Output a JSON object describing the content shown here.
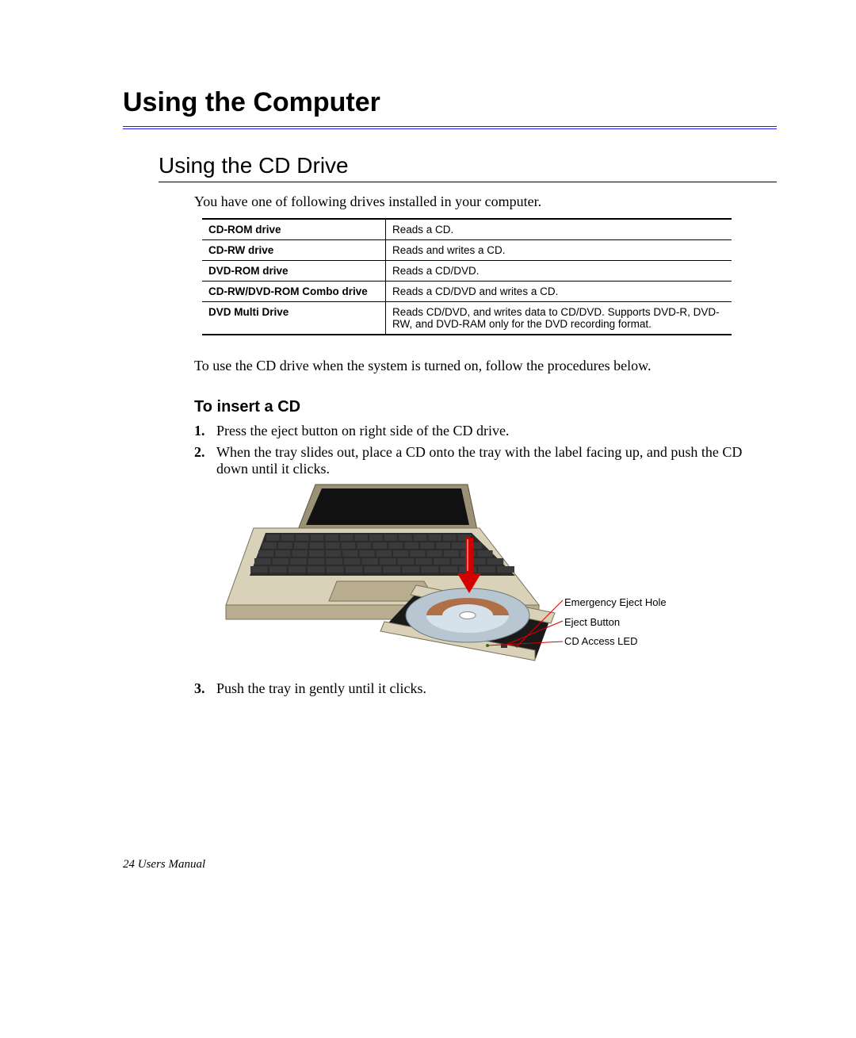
{
  "chapter": {
    "title": "Using the Computer"
  },
  "section": {
    "title": "Using the CD Drive",
    "intro": "You have one of following drives installed in your computer.",
    "after_table": "To use the CD drive when the system is turned on, follow the procedures below."
  },
  "drive_table": {
    "rows": [
      {
        "name": "CD-ROM drive",
        "desc": "Reads a CD."
      },
      {
        "name": "CD-RW drive",
        "desc": "Reads and writes a CD."
      },
      {
        "name": "DVD-ROM drive",
        "desc": "Reads a CD/DVD."
      },
      {
        "name": "CD-RW/DVD-ROM Combo drive",
        "desc": "Reads a CD/DVD and writes a CD."
      },
      {
        "name": "DVD Multi Drive",
        "desc": "Reads CD/DVD, and writes data to CD/DVD. Supports DVD-R, DVD-RW, and DVD-RAM only for the DVD recording format."
      }
    ]
  },
  "insert_cd": {
    "heading": "To insert a CD",
    "steps": [
      {
        "n": "1.",
        "text": "Press the eject button on right side of the CD drive."
      },
      {
        "n": "2.",
        "text": "When the tray slides out, place a CD onto the tray with the label facing up, and push the CD down until it clicks."
      },
      {
        "n": "3.",
        "text": "Push the tray in gently until it clicks."
      }
    ]
  },
  "figure": {
    "callouts": {
      "a": "Emergency Eject Hole",
      "b": "Eject Button",
      "c": "CD Access LED"
    },
    "colors": {
      "laptop_body_light": "#d9d1b8",
      "laptop_body_dark": "#b8ad8e",
      "keyboard": "#2b2b2b",
      "keycap": "#3a3a3a",
      "screen_bezel": "#9b9176",
      "screen": "#111111",
      "tray": "#d9d1b8",
      "tray_inner": "#1a1a1a",
      "disc_outer": "#b8c6d2",
      "disc_label": "#a85a2a",
      "arrow": "#d30000",
      "leader": "#d30000"
    }
  },
  "footer": {
    "page": "24",
    "label": "Users Manual"
  }
}
